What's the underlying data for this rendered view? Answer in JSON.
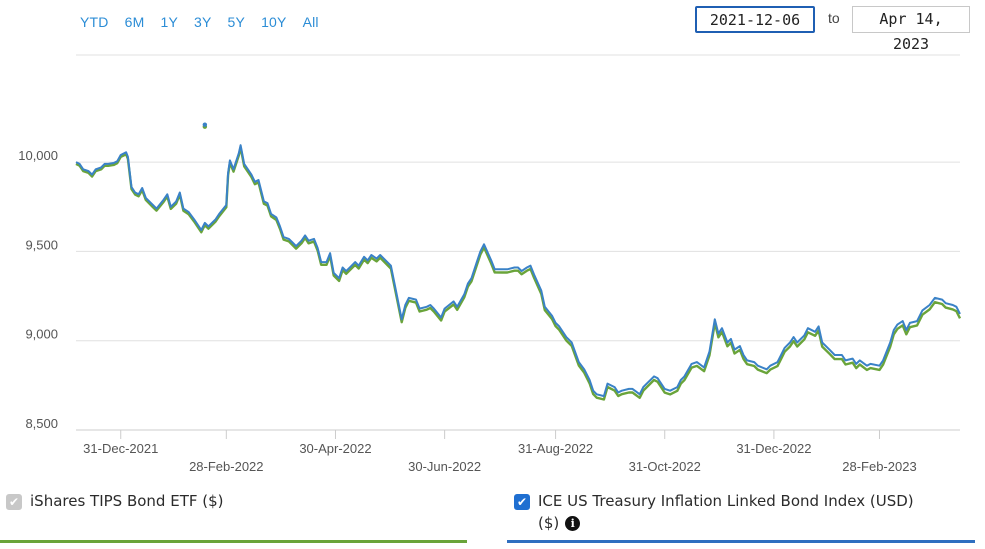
{
  "range_buttons": [
    "YTD",
    "6M",
    "1Y",
    "3Y",
    "5Y",
    "10Y",
    "All"
  ],
  "date_range": {
    "from": "2021-12-06",
    "to_label": "to",
    "to": "Apr 14, 2023"
  },
  "legend": [
    {
      "label": "iShares TIPS Bond ETF ($)",
      "checked": true,
      "checkbox_color": "#c8c8c8",
      "underline_color": "#6aa43a"
    },
    {
      "label": "ICE US Treasury Inflation Linked Bond Index (USD)",
      "label_line2": "($)",
      "checked": true,
      "checkbox_color": "#1f6fd1",
      "underline_color": "#2f6fc0",
      "info_icon": "info-icon"
    }
  ],
  "colors": {
    "series_etf": "#6aa43a",
    "series_index": "#3a82c7",
    "grid": "#e0e0e0",
    "tick_text": "#555555"
  },
  "chart_data": {
    "type": "line",
    "ylim": [
      8500,
      10600
    ],
    "y_ticks": [
      8500,
      9000,
      9500,
      10000
    ],
    "y_tick_labels": [
      "8,500",
      "9,000",
      "9,500",
      "10,000"
    ],
    "x_range": [
      "2021-12-06",
      "2023-04-14"
    ],
    "x_ticks": [
      {
        "date": "2021-12-31",
        "label": "31-Dec-2021",
        "row": 1
      },
      {
        "date": "2022-02-28",
        "label": "28-Feb-2022",
        "row": 2
      },
      {
        "date": "2022-04-30",
        "label": "30-Apr-2022",
        "row": 1
      },
      {
        "date": "2022-06-30",
        "label": "30-Jun-2022",
        "row": 2
      },
      {
        "date": "2022-08-31",
        "label": "31-Aug-2022",
        "row": 1
      },
      {
        "date": "2022-10-31",
        "label": "31-Oct-2022",
        "row": 2
      },
      {
        "date": "2022-12-31",
        "label": "31-Dec-2022",
        "row": 1
      },
      {
        "date": "2023-02-28",
        "label": "28-Feb-2023",
        "row": 2
      }
    ],
    "grid": true,
    "series": [
      {
        "name": "ICE US Treasury Inflation Linked Bond Index (USD)",
        "points": [
          [
            "2021-12-06",
            10000
          ],
          [
            "2021-12-08",
            9990
          ],
          [
            "2021-12-10",
            9960
          ],
          [
            "2021-12-13",
            9950
          ],
          [
            "2021-12-15",
            9930
          ],
          [
            "2021-12-17",
            9960
          ],
          [
            "2021-12-20",
            9970
          ],
          [
            "2021-12-22",
            9990
          ],
          [
            "2021-12-24",
            9990
          ],
          [
            "2021-12-27",
            9995
          ],
          [
            "2021-12-29",
            10005
          ],
          [
            "2021-12-31",
            10040
          ],
          [
            "2022-01-03",
            10055
          ],
          [
            "2022-01-04",
            10030
          ],
          [
            "2022-01-06",
            9860
          ],
          [
            "2022-01-08",
            9830
          ],
          [
            "2022-01-10",
            9820
          ],
          [
            "2022-01-12",
            9855
          ],
          [
            "2022-01-14",
            9800
          ],
          [
            "2022-01-18",
            9760
          ],
          [
            "2022-01-20",
            9740
          ],
          [
            "2022-01-24",
            9790
          ],
          [
            "2022-01-26",
            9820
          ],
          [
            "2022-01-28",
            9750
          ],
          [
            "2022-01-31",
            9780
          ],
          [
            "2022-02-02",
            9830
          ],
          [
            "2022-02-04",
            9740
          ],
          [
            "2022-02-07",
            9720
          ],
          [
            "2022-02-10",
            9680
          ],
          [
            "2022-02-14",
            9620
          ],
          [
            "2022-02-16",
            9660
          ],
          [
            "2022-02-18",
            9640
          ],
          [
            "2022-02-22",
            9680
          ],
          [
            "2022-02-24",
            9710
          ],
          [
            "2022-02-28",
            9760
          ],
          [
            "2022-03-01",
            9940
          ],
          [
            "2022-03-02",
            10010
          ],
          [
            "2022-03-04",
            9960
          ],
          [
            "2022-03-07",
            10050
          ],
          [
            "2022-03-08",
            10095
          ],
          [
            "2022-03-10",
            9990
          ],
          [
            "2022-03-14",
            9930
          ],
          [
            "2022-03-16",
            9890
          ],
          [
            "2022-03-18",
            9900
          ],
          [
            "2022-03-21",
            9780
          ],
          [
            "2022-03-23",
            9770
          ],
          [
            "2022-03-25",
            9710
          ],
          [
            "2022-03-28",
            9690
          ],
          [
            "2022-03-30",
            9640
          ],
          [
            "2022-04-01",
            9580
          ],
          [
            "2022-04-04",
            9570
          ],
          [
            "2022-04-06",
            9550
          ],
          [
            "2022-04-08",
            9530
          ],
          [
            "2022-04-11",
            9560
          ],
          [
            "2022-04-13",
            9590
          ],
          [
            "2022-04-15",
            9560
          ],
          [
            "2022-04-18",
            9570
          ],
          [
            "2022-04-20",
            9520
          ],
          [
            "2022-04-22",
            9440
          ],
          [
            "2022-04-25",
            9440
          ],
          [
            "2022-04-27",
            9490
          ],
          [
            "2022-04-29",
            9380
          ],
          [
            "2022-05-02",
            9350
          ],
          [
            "2022-05-04",
            9410
          ],
          [
            "2022-05-06",
            9390
          ],
          [
            "2022-05-09",
            9420
          ],
          [
            "2022-05-11",
            9440
          ],
          [
            "2022-05-13",
            9420
          ],
          [
            "2022-05-16",
            9470
          ],
          [
            "2022-05-18",
            9450
          ],
          [
            "2022-05-20",
            9480
          ],
          [
            "2022-05-23",
            9460
          ],
          [
            "2022-05-25",
            9480
          ],
          [
            "2022-05-27",
            9460
          ],
          [
            "2022-05-31",
            9420
          ],
          [
            "2022-06-03",
            9270
          ],
          [
            "2022-06-06",
            9120
          ],
          [
            "2022-06-08",
            9200
          ],
          [
            "2022-06-10",
            9240
          ],
          [
            "2022-06-14",
            9230
          ],
          [
            "2022-06-16",
            9180
          ],
          [
            "2022-06-20",
            9190
          ],
          [
            "2022-06-22",
            9200
          ],
          [
            "2022-06-24",
            9180
          ],
          [
            "2022-06-28",
            9130
          ],
          [
            "2022-06-30",
            9180
          ],
          [
            "2022-07-05",
            9220
          ],
          [
            "2022-07-07",
            9190
          ],
          [
            "2022-07-11",
            9260
          ],
          [
            "2022-07-13",
            9320
          ],
          [
            "2022-07-15",
            9350
          ],
          [
            "2022-07-18",
            9440
          ],
          [
            "2022-07-20",
            9500
          ],
          [
            "2022-07-22",
            9540
          ],
          [
            "2022-07-26",
            9450
          ],
          [
            "2022-07-28",
            9400
          ],
          [
            "2022-08-01",
            9400
          ],
          [
            "2022-08-04",
            9400
          ],
          [
            "2022-08-08",
            9410
          ],
          [
            "2022-08-10",
            9410
          ],
          [
            "2022-08-12",
            9390
          ],
          [
            "2022-08-15",
            9410
          ],
          [
            "2022-08-17",
            9420
          ],
          [
            "2022-08-19",
            9370
          ],
          [
            "2022-08-23",
            9280
          ],
          [
            "2022-08-25",
            9190
          ],
          [
            "2022-08-29",
            9140
          ],
          [
            "2022-08-31",
            9100
          ],
          [
            "2022-09-02",
            9080
          ],
          [
            "2022-09-06",
            9020
          ],
          [
            "2022-09-09",
            8990
          ],
          [
            "2022-09-13",
            8880
          ],
          [
            "2022-09-16",
            8840
          ],
          [
            "2022-09-19",
            8780
          ],
          [
            "2022-09-21",
            8720
          ],
          [
            "2022-09-23",
            8700
          ],
          [
            "2022-09-27",
            8690
          ],
          [
            "2022-09-29",
            8760
          ],
          [
            "2022-10-03",
            8740
          ],
          [
            "2022-10-05",
            8710
          ],
          [
            "2022-10-07",
            8720
          ],
          [
            "2022-10-11",
            8730
          ],
          [
            "2022-10-13",
            8730
          ],
          [
            "2022-10-17",
            8700
          ],
          [
            "2022-10-19",
            8740
          ],
          [
            "2022-10-21",
            8760
          ],
          [
            "2022-10-25",
            8800
          ],
          [
            "2022-10-27",
            8790
          ],
          [
            "2022-10-31",
            8730
          ],
          [
            "2022-11-03",
            8720
          ],
          [
            "2022-11-07",
            8740
          ],
          [
            "2022-11-09",
            8780
          ],
          [
            "2022-11-11",
            8800
          ],
          [
            "2022-11-15",
            8870
          ],
          [
            "2022-11-18",
            8880
          ],
          [
            "2022-11-22",
            8850
          ],
          [
            "2022-11-25",
            8940
          ],
          [
            "2022-11-28",
            9120
          ],
          [
            "2022-11-30",
            9040
          ],
          [
            "2022-12-02",
            9070
          ],
          [
            "2022-12-05",
            8990
          ],
          [
            "2022-12-07",
            9010
          ],
          [
            "2022-12-09",
            8950
          ],
          [
            "2022-12-12",
            8970
          ],
          [
            "2022-12-14",
            8920
          ],
          [
            "2022-12-16",
            8890
          ],
          [
            "2022-12-20",
            8880
          ],
          [
            "2022-12-22",
            8860
          ],
          [
            "2022-12-27",
            8840
          ],
          [
            "2022-12-29",
            8860
          ],
          [
            "2023-01-02",
            8880
          ],
          [
            "2023-01-04",
            8920
          ],
          [
            "2023-01-06",
            8960
          ],
          [
            "2023-01-09",
            8990
          ],
          [
            "2023-01-11",
            9020
          ],
          [
            "2023-01-13",
            8990
          ],
          [
            "2023-01-17",
            9030
          ],
          [
            "2023-01-19",
            9070
          ],
          [
            "2023-01-23",
            9050
          ],
          [
            "2023-01-25",
            9080
          ],
          [
            "2023-01-27",
            8990
          ],
          [
            "2023-01-31",
            8950
          ],
          [
            "2023-02-03",
            8920
          ],
          [
            "2023-02-07",
            8920
          ],
          [
            "2023-02-09",
            8890
          ],
          [
            "2023-02-13",
            8900
          ],
          [
            "2023-02-15",
            8870
          ],
          [
            "2023-02-17",
            8890
          ],
          [
            "2023-02-21",
            8860
          ],
          [
            "2023-02-23",
            8870
          ],
          [
            "2023-02-28",
            8860
          ],
          [
            "2023-03-02",
            8890
          ],
          [
            "2023-03-06",
            8990
          ],
          [
            "2023-03-08",
            9060
          ],
          [
            "2023-03-10",
            9090
          ],
          [
            "2023-03-13",
            9110
          ],
          [
            "2023-03-15",
            9060
          ],
          [
            "2023-03-17",
            9100
          ],
          [
            "2023-03-21",
            9110
          ],
          [
            "2023-03-24",
            9170
          ],
          [
            "2023-03-28",
            9200
          ],
          [
            "2023-03-31",
            9240
          ],
          [
            "2023-04-04",
            9230
          ],
          [
            "2023-04-06",
            9210
          ],
          [
            "2023-04-10",
            9200
          ],
          [
            "2023-04-12",
            9190
          ],
          [
            "2023-04-14",
            9150
          ]
        ]
      },
      {
        "name": "iShares TIPS Bond ETF ($)",
        "offset_from_index": [
          -10,
          -25
        ],
        "outlier": [
          "2022-02-16",
          10210
        ]
      }
    ]
  }
}
